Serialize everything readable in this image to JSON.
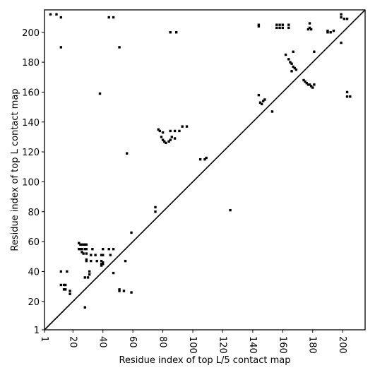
{
  "chart_data": {
    "type": "scatter",
    "title": "",
    "xlabel": "Residue index of top L/5 contact map",
    "ylabel": "Residue index of top L contact map",
    "xlim": [
      1,
      215
    ],
    "ylim": [
      1,
      215
    ],
    "x_ticks": [
      1,
      20,
      40,
      60,
      80,
      100,
      120,
      140,
      160,
      180,
      200
    ],
    "y_ticks": [
      1,
      20,
      40,
      60,
      80,
      100,
      120,
      140,
      160,
      180,
      200
    ],
    "diagonal": true,
    "grid": false,
    "marker": "square",
    "color": "#000000",
    "series": [
      {
        "values": [
          [
            5,
            212
          ],
          [
            9,
            212
          ],
          [
            12,
            210
          ],
          [
            12,
            190
          ],
          [
            44,
            210
          ],
          [
            47,
            210
          ],
          [
            51,
            190
          ],
          [
            85,
            200
          ],
          [
            89,
            200
          ],
          [
            144,
            205
          ],
          [
            144,
            204
          ],
          [
            156,
            205
          ],
          [
            156,
            203
          ],
          [
            158,
            205
          ],
          [
            158,
            203
          ],
          [
            160,
            205
          ],
          [
            160,
            203
          ],
          [
            164,
            205
          ],
          [
            164,
            203
          ],
          [
            178,
            206
          ],
          [
            178,
            203
          ],
          [
            177,
            202
          ],
          [
            179,
            202
          ],
          [
            181,
            187
          ],
          [
            190,
            201
          ],
          [
            190,
            200
          ],
          [
            192,
            200
          ],
          [
            194,
            201
          ],
          [
            199,
            212
          ],
          [
            199,
            210
          ],
          [
            201,
            209
          ],
          [
            203,
            209
          ],
          [
            199,
            193
          ],
          [
            162,
            185
          ],
          [
            164,
            182
          ],
          [
            165,
            180
          ],
          [
            166,
            179
          ],
          [
            167,
            177
          ],
          [
            168,
            176
          ],
          [
            169,
            175
          ],
          [
            166,
            174
          ],
          [
            167,
            187
          ],
          [
            174,
            168
          ],
          [
            175,
            167
          ],
          [
            176,
            166
          ],
          [
            177,
            165
          ],
          [
            178,
            165
          ],
          [
            179,
            164
          ],
          [
            180,
            163
          ],
          [
            181,
            165
          ],
          [
            203,
            160
          ],
          [
            203,
            157
          ],
          [
            205,
            157
          ],
          [
            144,
            158
          ],
          [
            145,
            153
          ],
          [
            146,
            152
          ],
          [
            147,
            154
          ],
          [
            148,
            155
          ],
          [
            153,
            147
          ],
          [
            38,
            159
          ],
          [
            77,
            135
          ],
          [
            78,
            134
          ],
          [
            80,
            133
          ],
          [
            79,
            130
          ],
          [
            80,
            128
          ],
          [
            81,
            127
          ],
          [
            82,
            126
          ],
          [
            84,
            127
          ],
          [
            85,
            128
          ],
          [
            86,
            130
          ],
          [
            85,
            134
          ],
          [
            88,
            129
          ],
          [
            88,
            134
          ],
          [
            91,
            134
          ],
          [
            93,
            137
          ],
          [
            96,
            137
          ],
          [
            56,
            119
          ],
          [
            105,
            115
          ],
          [
            108,
            115
          ],
          [
            109,
            116
          ],
          [
            75,
            83
          ],
          [
            75,
            80
          ],
          [
            125,
            81
          ],
          [
            59,
            66
          ],
          [
            12,
            40
          ],
          [
            16,
            40
          ],
          [
            24,
            59
          ],
          [
            25,
            58
          ],
          [
            26,
            58
          ],
          [
            27,
            58
          ],
          [
            28,
            58
          ],
          [
            29,
            58
          ],
          [
            24,
            55
          ],
          [
            25,
            55
          ],
          [
            26,
            55
          ],
          [
            28,
            55
          ],
          [
            29,
            55
          ],
          [
            26,
            53
          ],
          [
            27,
            52
          ],
          [
            29,
            52
          ],
          [
            32,
            51
          ],
          [
            35,
            51
          ],
          [
            39,
            51
          ],
          [
            40,
            51
          ],
          [
            45,
            51
          ],
          [
            33,
            55
          ],
          [
            40,
            55
          ],
          [
            44,
            55
          ],
          [
            47,
            55
          ],
          [
            29,
            48
          ],
          [
            29,
            47
          ],
          [
            32,
            47
          ],
          [
            36,
            47
          ],
          [
            39,
            47
          ],
          [
            40,
            46
          ],
          [
            39,
            45
          ],
          [
            40,
            45
          ],
          [
            39,
            44
          ],
          [
            47,
            39
          ],
          [
            31,
            40
          ],
          [
            31,
            38
          ],
          [
            28,
            36
          ],
          [
            30,
            36
          ],
          [
            24,
            59
          ],
          [
            12,
            31
          ],
          [
            14,
            31
          ],
          [
            15,
            31
          ],
          [
            14,
            28
          ],
          [
            15,
            28
          ],
          [
            18,
            27
          ],
          [
            18,
            25
          ],
          [
            51,
            28
          ],
          [
            51,
            27
          ],
          [
            54,
            27
          ],
          [
            55,
            47
          ],
          [
            59,
            26
          ],
          [
            28,
            16
          ]
        ]
      }
    ]
  }
}
